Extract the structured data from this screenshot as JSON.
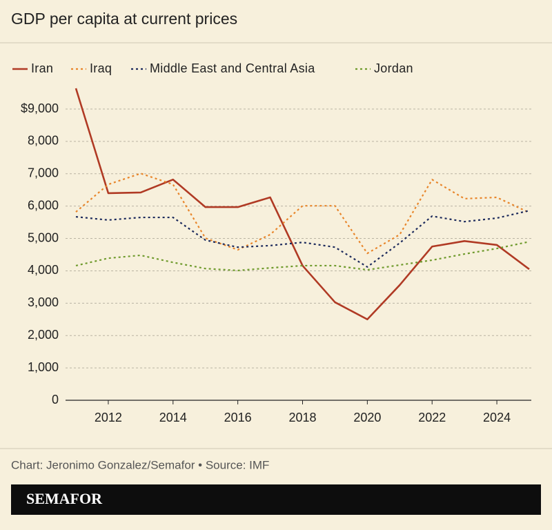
{
  "chart_data": {
    "type": "line",
    "title": "GDP per capita at current prices",
    "x": [
      2011,
      2012,
      2013,
      2014,
      2015,
      2016,
      2017,
      2018,
      2019,
      2020,
      2021,
      2022,
      2023,
      2024,
      2025
    ],
    "xlim": [
      2011,
      2025
    ],
    "xticks": [
      2012,
      2014,
      2016,
      2018,
      2020,
      2022,
      2024
    ],
    "ylim": [
      0,
      9000
    ],
    "yticks": [
      0,
      {
        "value": 1000,
        "label": "1,000"
      },
      {
        "value": 2000,
        "label": "2,000"
      },
      {
        "value": 3000,
        "label": "3,000"
      },
      {
        "value": 4000,
        "label": "4,000"
      },
      {
        "value": 5000,
        "label": "5,000"
      },
      {
        "value": 6000,
        "label": "6,000"
      },
      {
        "value": 7000,
        "label": "7,000"
      },
      {
        "value": 8000,
        "label": "8,000"
      },
      {
        "value": 9000,
        "label": "$9,000"
      }
    ],
    "grid": true,
    "series": [
      {
        "name": "Iran",
        "color": "#b03a24",
        "style": "solid",
        "values": [
          9640,
          6400,
          6420,
          6820,
          5970,
          5970,
          6270,
          4160,
          3030,
          2500,
          3560,
          4750,
          4920,
          4800,
          4050
        ]
      },
      {
        "name": "Iraq",
        "color": "#e8852a",
        "style": "dotted",
        "values": [
          5820,
          6670,
          7010,
          6670,
          5010,
          4650,
          5120,
          6010,
          6010,
          4540,
          5120,
          6820,
          6230,
          6270,
          5800
        ]
      },
      {
        "name": "Middle East and Central Asia",
        "color": "#1c2a5c",
        "style": "dotted",
        "values": [
          5670,
          5570,
          5650,
          5650,
          4950,
          4730,
          4780,
          4880,
          4730,
          4120,
          4860,
          5690,
          5520,
          5630,
          5860
        ]
      },
      {
        "name": "Jordan",
        "color": "#6e9a2c",
        "style": "dotted",
        "values": [
          4160,
          4390,
          4480,
          4260,
          4070,
          4010,
          4090,
          4160,
          4160,
          4030,
          4180,
          4330,
          4520,
          4690,
          4900
        ]
      }
    ],
    "source": "Chart: Jeronimo Gonzalez/Semafor • Source: IMF",
    "logo": "SEMAFOR"
  }
}
